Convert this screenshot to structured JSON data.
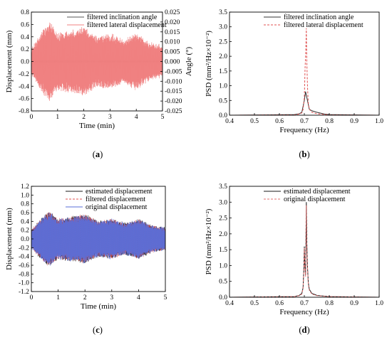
{
  "chart_data": [
    {
      "id": "a",
      "type": "line",
      "caption": "(a)",
      "xlabel": "Time (min)",
      "ylabel": "Displacement (mm)",
      "y2label": "Angle (°)",
      "xlim": [
        0,
        5
      ],
      "ylim": [
        -0.8,
        0.8
      ],
      "y2lim": [
        -0.025,
        0.025
      ],
      "xticks": [
        0,
        1,
        2,
        3,
        4,
        5
      ],
      "yticks": [
        -0.8,
        -0.6,
        -0.4,
        -0.2,
        0.0,
        0.2,
        0.4,
        0.6,
        0.8
      ],
      "yticklabels": [
        "-0.8",
        "-0.6",
        "-0.4",
        "-0.2",
        "0.0",
        "0.2",
        "0.4",
        "0.6",
        "0.8"
      ],
      "y2ticks": [
        -0.025,
        -0.02,
        -0.015,
        -0.01,
        -0.005,
        0.0,
        0.005,
        0.01,
        0.015,
        0.02,
        0.025
      ],
      "y2ticklabels": [
        "-0.025",
        "-0.020",
        "-0.015",
        "-0.010",
        "-0.005",
        "0.000",
        "0.005",
        "0.010",
        "0.015",
        "0.020",
        "0.025"
      ],
      "legend_position": "top-right",
      "series": [
        {
          "name": "filtered inclination angle",
          "color": "#555555",
          "axis": "y2",
          "x": [
            0,
            0.5,
            1,
            1.5,
            2,
            2.5,
            3,
            3.5,
            4,
            4.5,
            5
          ],
          "amplitude": [
            0.0004,
            0.0006,
            0.0005,
            0.0006,
            0.0005,
            0.0004,
            0.0005,
            0.0004,
            0.0005,
            0.0004,
            0.0004
          ]
        },
        {
          "name": "filtered lateral displacement",
          "color": "#f08080",
          "axis": "y",
          "x": [
            0,
            0.5,
            0.7,
            1,
            1.5,
            2,
            2.5,
            3,
            3.5,
            4,
            4.5,
            5
          ],
          "amplitude": [
            0.2,
            0.55,
            0.65,
            0.45,
            0.5,
            0.55,
            0.4,
            0.45,
            0.35,
            0.45,
            0.3,
            0.25
          ]
        }
      ]
    },
    {
      "id": "b",
      "type": "line",
      "caption": "(b)",
      "xlabel": "Frequency (Hz)",
      "ylabel": "PSD (mm²/Hz×10⁻²)",
      "xlim": [
        0.4,
        1.0
      ],
      "ylim": [
        0,
        3.5
      ],
      "xticks": [
        0.4,
        0.5,
        0.6,
        0.7,
        0.8,
        0.9,
        1.0
      ],
      "yticks": [
        0.0,
        0.5,
        1.0,
        1.5,
        2.0,
        2.5,
        3.0,
        3.5
      ],
      "yticklabels": [
        "0.0",
        "0.5",
        "1.0",
        "1.5",
        "2.0",
        "2.5",
        "3.0",
        "3.5"
      ],
      "legend_position": "top-right",
      "series": [
        {
          "name": "filtered inclination angle",
          "color": "#333333",
          "dash": false,
          "x": [
            0.4,
            0.66,
            0.68,
            0.69,
            0.695,
            0.7,
            0.705,
            0.71,
            0.715,
            0.72,
            0.73,
            0.75,
            0.78,
            0.8,
            1.0
          ],
          "y": [
            0.0,
            0.02,
            0.05,
            0.1,
            0.3,
            0.5,
            0.8,
            0.6,
            0.4,
            0.2,
            0.15,
            0.1,
            0.04,
            0.02,
            0.0
          ]
        },
        {
          "name": "filtered lateral displacement",
          "color": "#e05050",
          "dash": true,
          "x": [
            0.4,
            0.66,
            0.68,
            0.69,
            0.695,
            0.7,
            0.703,
            0.706,
            0.708,
            0.71,
            0.713,
            0.716,
            0.72,
            0.73,
            0.75,
            0.8,
            1.0
          ],
          "y": [
            0.0,
            0.01,
            0.04,
            0.08,
            0.2,
            0.6,
            1.6,
            2.2,
            2.95,
            1.8,
            0.9,
            0.4,
            0.2,
            0.1,
            0.05,
            0.01,
            0.0
          ]
        }
      ]
    },
    {
      "id": "c",
      "type": "line",
      "caption": "(c)",
      "xlabel": "Time (min)",
      "ylabel": "Displacement (mm)",
      "xlim": [
        0,
        5
      ],
      "ylim": [
        -1.2,
        1.2
      ],
      "xticks": [
        0,
        1,
        2,
        3,
        4,
        5
      ],
      "yticks": [
        -1.2,
        -1.0,
        -0.8,
        -0.6,
        -0.4,
        -0.2,
        0.0,
        0.2,
        0.4,
        0.6,
        0.8,
        1.0,
        1.2
      ],
      "yticklabels": [
        "-1.2",
        "-1.0",
        "-0.8",
        "-0.6",
        "-0.4",
        "-0.2",
        "0.0",
        "0.2",
        "0.4",
        "0.6",
        "0.8",
        "1.0",
        "1.2"
      ],
      "legend_position": "top-right",
      "series": [
        {
          "name": "estimated displacement",
          "color": "#1a1a1a",
          "dash": false,
          "x": [
            0,
            0.5,
            0.7,
            1,
            1.5,
            2,
            2.5,
            3,
            3.5,
            4,
            4.5,
            5
          ],
          "amplitude": [
            0.2,
            0.55,
            0.62,
            0.45,
            0.5,
            0.55,
            0.4,
            0.45,
            0.35,
            0.45,
            0.3,
            0.25
          ]
        },
        {
          "name": "filtered displacement",
          "color": "#e05050",
          "dash": true,
          "x": [
            0,
            0.5,
            0.7,
            1,
            1.5,
            2,
            2.5,
            3,
            3.5,
            4,
            4.5,
            5
          ],
          "amplitude": [
            0.2,
            0.55,
            0.62,
            0.45,
            0.5,
            0.55,
            0.4,
            0.45,
            0.35,
            0.45,
            0.3,
            0.25
          ]
        },
        {
          "name": "original displacement",
          "color": "#5a6fd8",
          "dash": false,
          "x": [
            0,
            0.5,
            0.7,
            1,
            1.5,
            2,
            2.5,
            3,
            3.5,
            4,
            4.5,
            5
          ],
          "amplitude": [
            0.2,
            0.55,
            0.6,
            0.45,
            0.5,
            0.55,
            0.4,
            0.45,
            0.35,
            0.45,
            0.3,
            0.25
          ]
        }
      ]
    },
    {
      "id": "d",
      "type": "line",
      "caption": "(d)",
      "xlabel": "Frequency (Hz)",
      "ylabel": "PSD (mm²/Hz×10⁻²)",
      "xlim": [
        0.4,
        1.0
      ],
      "ylim": [
        0,
        3.5
      ],
      "xticks": [
        0.4,
        0.5,
        0.6,
        0.7,
        0.8,
        0.9,
        1.0
      ],
      "yticks": [
        0.0,
        0.5,
        1.0,
        1.5,
        2.0,
        2.5,
        3.0,
        3.5
      ],
      "yticklabels": [
        "0.0",
        "0.5",
        "1.0",
        "1.5",
        "2.0",
        "2.5",
        "3.0",
        "3.5"
      ],
      "legend_position": "top-right",
      "series": [
        {
          "name": "estimated displacement",
          "color": "#1a1a1a",
          "dash": false,
          "x": [
            0.4,
            0.66,
            0.68,
            0.69,
            0.695,
            0.698,
            0.7,
            0.702,
            0.705,
            0.708,
            0.71,
            0.713,
            0.716,
            0.72,
            0.73,
            0.75,
            0.8,
            1.0
          ],
          "y": [
            0.0,
            0.02,
            0.06,
            0.12,
            0.3,
            0.9,
            1.6,
            1.0,
            0.7,
            3.0,
            1.7,
            0.9,
            0.45,
            0.25,
            0.12,
            0.06,
            0.02,
            0.0
          ]
        },
        {
          "name": "original displacement",
          "color": "#e07070",
          "dash": true,
          "x": [
            0.4,
            0.66,
            0.68,
            0.69,
            0.695,
            0.698,
            0.7,
            0.702,
            0.705,
            0.708,
            0.71,
            0.713,
            0.716,
            0.72,
            0.73,
            0.75,
            0.8,
            1.0
          ],
          "y": [
            0.0,
            0.02,
            0.05,
            0.1,
            0.28,
            0.85,
            1.55,
            0.95,
            0.65,
            2.9,
            1.6,
            0.85,
            0.4,
            0.22,
            0.1,
            0.05,
            0.02,
            0.0
          ]
        }
      ]
    }
  ]
}
